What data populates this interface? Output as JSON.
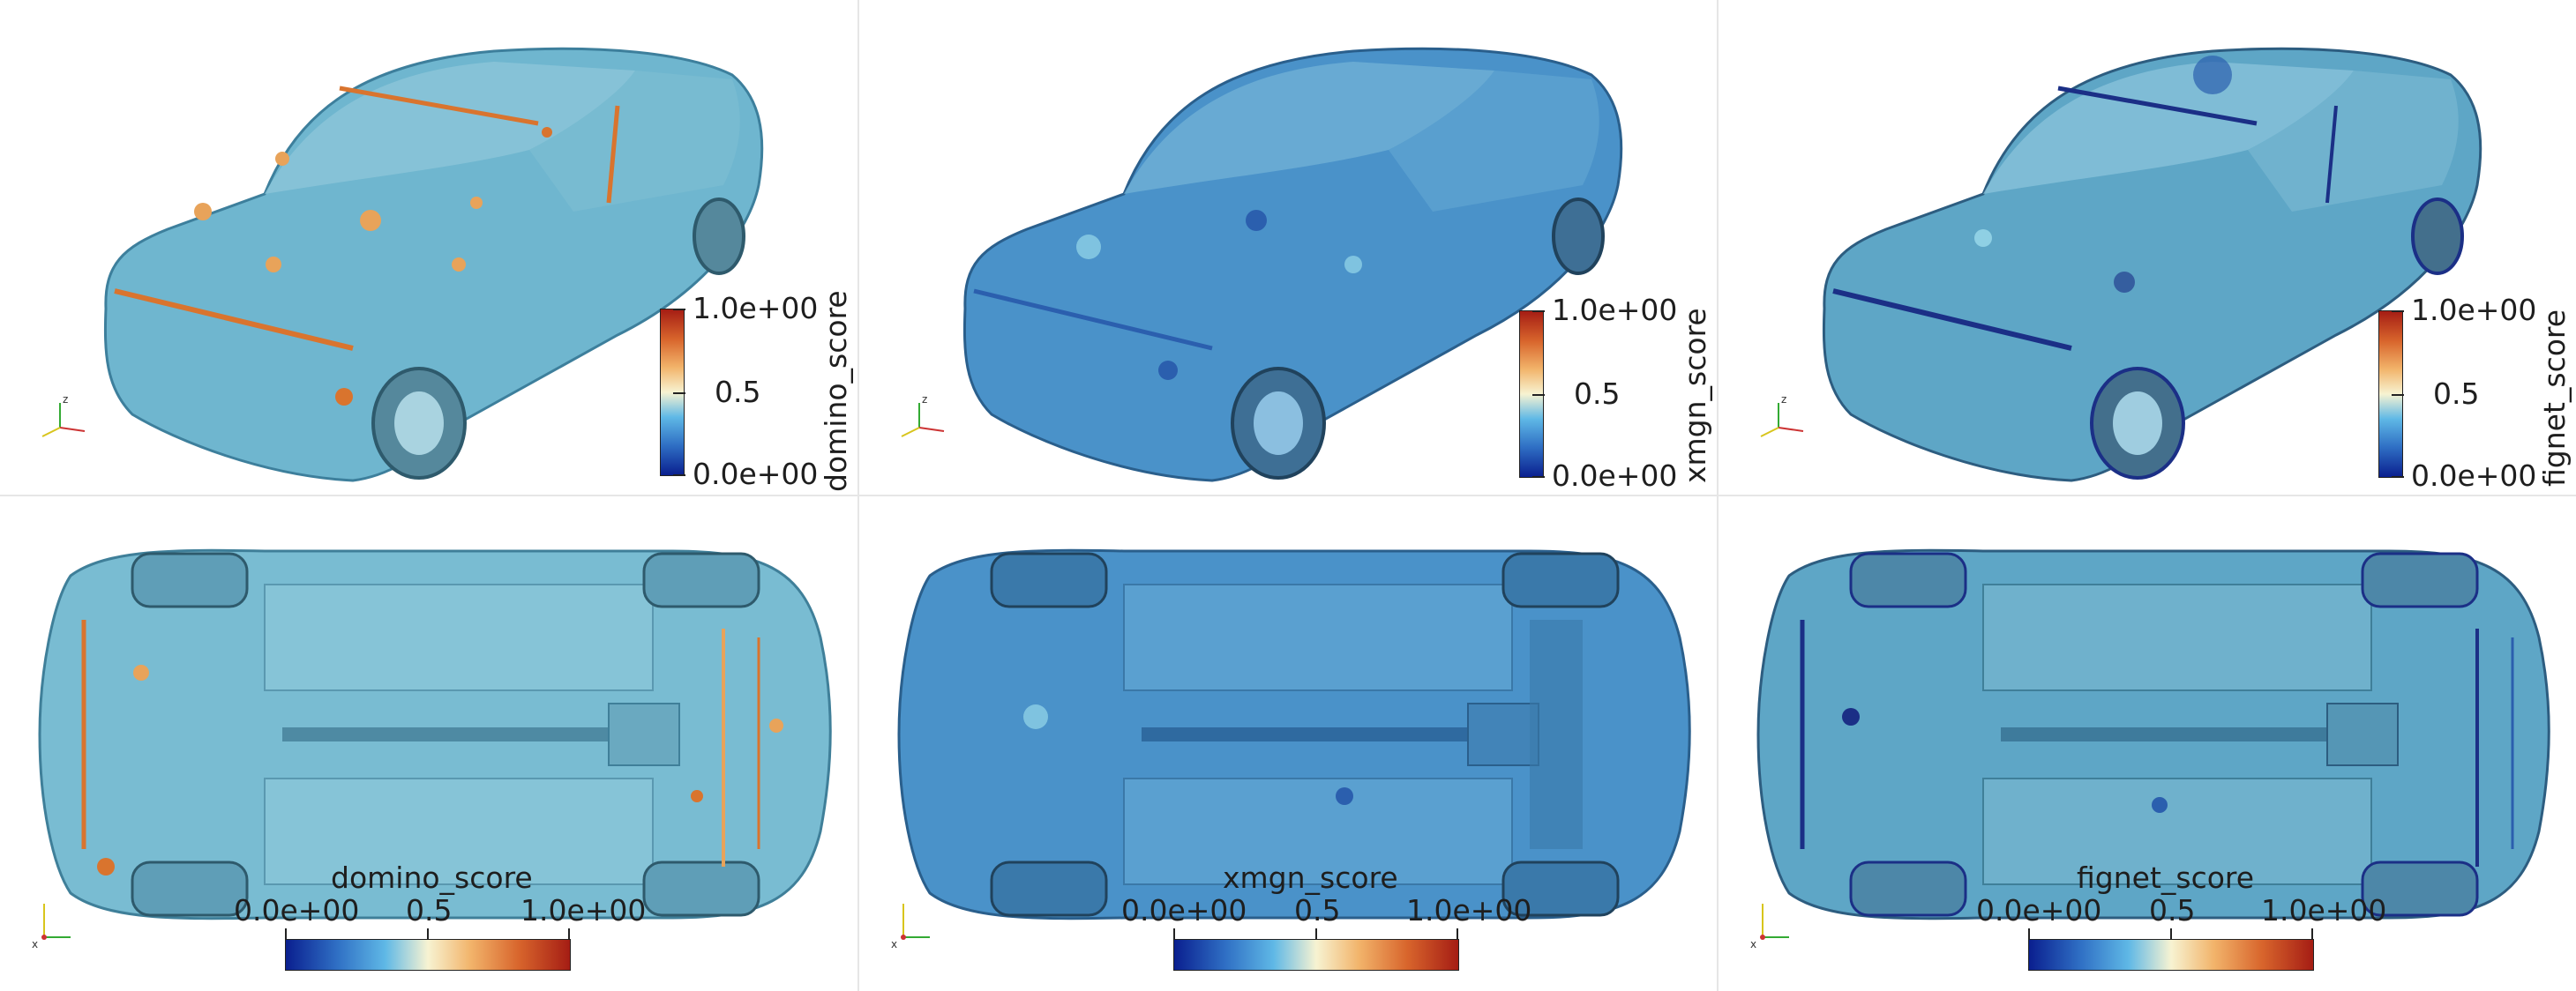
{
  "panels": [
    {
      "id": "domino-iso",
      "score": "domino_score",
      "max": "1.0e+00",
      "mid": "0.5",
      "min": "0.0e+00",
      "base": "#6fb6cf",
      "accent": "#d9742e",
      "spot": "#e8a35a"
    },
    {
      "id": "xmgn-iso",
      "score": "xmgn_score",
      "max": "1.0e+00",
      "mid": "0.5",
      "min": "0.0e+00",
      "base": "#4a92c9",
      "accent": "#2b5fae",
      "spot": "#7fc3e0"
    },
    {
      "id": "fignet-iso",
      "score": "fignet_score",
      "max": "1.0e+00",
      "mid": "0.5",
      "min": "0.0e+00",
      "base": "#5ea6c6",
      "accent": "#1b2f86",
      "spot": "#8fd0e4"
    },
    {
      "id": "domino-bottom",
      "score": "domino_score",
      "min": "0.0e+00",
      "mid": "0.5",
      "max": "1.0e+00",
      "base": "#79bcd2",
      "accent": "#d9742e",
      "spot": "#e8a35a"
    },
    {
      "id": "xmgn-bottom",
      "score": "xmgn_score",
      "min": "0.0e+00",
      "mid": "0.5",
      "max": "1.0e+00",
      "base": "#4a92c9",
      "accent": "#2b5fae",
      "spot": "#7fc3e0"
    },
    {
      "id": "fignet-bottom",
      "score": "fignet_score",
      "min": "0.0e+00",
      "mid": "0.5",
      "max": "1.0e+00",
      "base": "#5ea6c6",
      "accent": "#1b2f86",
      "spot": "#8fd0e4"
    }
  ],
  "axes": {
    "x": "x",
    "y": "y",
    "z": "z"
  },
  "colors": {
    "colormap_low": "#0a1f8f",
    "colormap_mid": "#f7f3d2",
    "colormap_high": "#a51d14"
  }
}
